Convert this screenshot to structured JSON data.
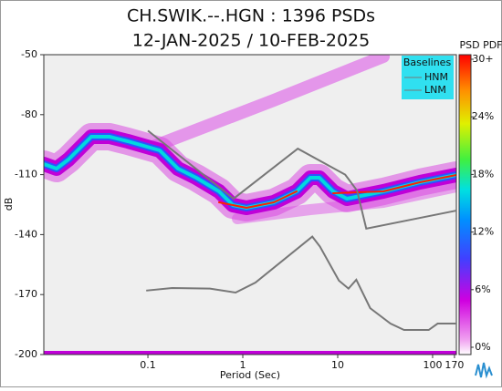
{
  "chart_data": {
    "type": "line",
    "title": "CH.SWIK.--.HGN : 1396 PSDs",
    "subtitle": "12-JAN-2025 / 10-FEB-2025",
    "x_label": "Period (Sec)",
    "y_label": "dB",
    "x_scale": "log",
    "xlim": [
      0.008,
      178
    ],
    "ylim": [
      -200,
      -50
    ],
    "xticks": [
      0.1,
      1,
      10,
      100,
      170
    ],
    "yticks": [
      -50,
      -80,
      -110,
      -140,
      -170,
      -200
    ],
    "legend": {
      "title": "Baselines",
      "position": "upper right"
    },
    "series": [
      {
        "name": "HNM",
        "color": "#777777",
        "x": [
          0.1,
          0.8,
          3.8,
          12,
          16,
          20,
          178
        ],
        "values": [
          -88,
          -122,
          -97,
          -110,
          -118,
          -137,
          -128
        ]
      },
      {
        "name": "LNM",
        "color": "#777777",
        "x": [
          0.096,
          0.18,
          0.45,
          0.84,
          1.36,
          5.4,
          6.5,
          10.3,
          13,
          15.7,
          22,
          36,
          50,
          91,
          113,
          178
        ],
        "values": [
          -168,
          -166.7,
          -167,
          -169,
          -164,
          -141,
          -146,
          -163,
          -167,
          -162.6,
          -176.8,
          -184.5,
          -187.7,
          -187.7,
          -184.5,
          -184.5
        ]
      }
    ],
    "colorbar": {
      "title": "PSD PDF",
      "lim": [
        0,
        30
      ],
      "ticks": [
        {
          "value": 0,
          "label": "0%"
        },
        {
          "value": 6,
          "label": "6%"
        },
        {
          "value": 12,
          "label": "12%"
        },
        {
          "value": 18,
          "label": "18%"
        },
        {
          "value": 24,
          "label": "24%"
        },
        {
          "value": 30,
          "label": "30+"
        }
      ]
    }
  }
}
